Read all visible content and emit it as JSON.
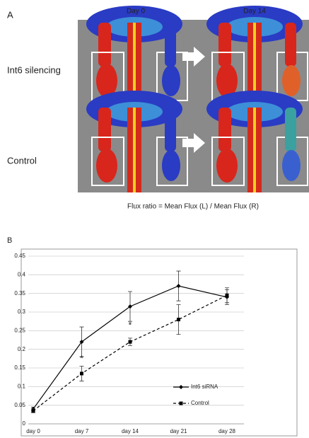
{
  "panel_a": {
    "label": "A",
    "columns": [
      "Day 0",
      "Day 14"
    ],
    "rows": [
      "Int6 silencing",
      "Control"
    ],
    "caption": "Flux ratio = Mean Flux (L) / Mean Flux (R)"
  },
  "chart_data": {
    "type": "line",
    "panel_label": "B",
    "categories": [
      "day 0",
      "day 7",
      "day 14",
      "day 21",
      "day 28"
    ],
    "series": [
      {
        "name": "Int6 siRNA",
        "color": "#000000",
        "line_style": "solid",
        "marker": "diamond",
        "values": [
          0.04,
          0.22,
          0.315,
          0.37,
          0.34
        ],
        "errors": [
          0.005,
          0.04,
          0.04,
          0.04,
          0.02
        ]
      },
      {
        "name": "Control",
        "color": "#000000",
        "line_style": "dashed",
        "marker": "square",
        "values": [
          0.035,
          0.135,
          0.22,
          0.28,
          0.345
        ],
        "errors": [
          0.005,
          0.02,
          0.01,
          0.04,
          0.02
        ]
      }
    ],
    "ylim": [
      0,
      0.45
    ],
    "yticks": [
      0,
      0.05,
      0.1,
      0.15,
      0.2,
      0.25,
      0.3,
      0.35,
      0.4,
      0.45
    ],
    "grid": true,
    "legend": "lower right",
    "annotations": [
      {
        "text": "*",
        "category": "day 7"
      },
      {
        "text": "*",
        "category": "day 14"
      }
    ]
  }
}
